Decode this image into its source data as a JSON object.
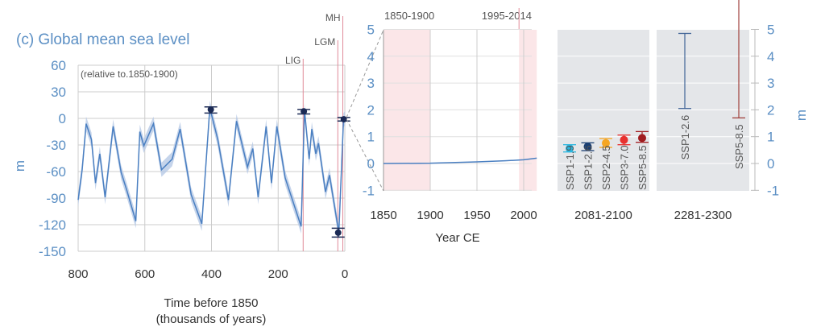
{
  "chart_data": [
    {
      "type": "line",
      "title": "(c) Global mean sea level",
      "annotation": "(relative to.1850-1900)",
      "xlabel": "Time before 1850",
      "xlabel2": "(thousands of years)",
      "ylabel": "m",
      "xlim": [
        800,
        0
      ],
      "ylim": [
        -150,
        60
      ],
      "xticks": [
        800,
        600,
        400,
        200,
        0
      ],
      "yticks": [
        60,
        30,
        0,
        -30,
        -60,
        -90,
        -120,
        -150
      ],
      "periods": [
        {
          "label": "LIG",
          "x": 125
        },
        {
          "label": "LGM",
          "x": 21
        },
        {
          "label": "MH",
          "x": 6
        }
      ],
      "series": {
        "x": [
          800,
          788,
          776,
          760,
          748,
          735,
          719,
          695,
          671,
          655,
          627,
          615,
          603,
          574,
          550,
          518,
          494,
          461,
          429,
          405,
          381,
          349,
          325,
          292,
          276,
          260,
          236,
          220,
          204,
          179,
          131,
          121,
          107,
          99,
          87,
          79,
          58,
          46,
          18,
          4,
          0
        ],
        "y": [
          -92,
          -58,
          -6,
          -24,
          -73,
          -40,
          -89,
          -9,
          -61,
          -80,
          -116,
          -15,
          -31,
          -6,
          -58,
          -46,
          -12,
          -86,
          -119,
          12,
          -24,
          -92,
          -3,
          -55,
          -34,
          -89,
          -9,
          -73,
          -9,
          -67,
          -122,
          9,
          -46,
          -12,
          -40,
          -28,
          -83,
          -64,
          -129,
          -2,
          0
        ],
        "band": 8
      },
      "points": [
        {
          "x": 402,
          "y": 10,
          "lo": 6,
          "hi": 13
        },
        {
          "x": 123,
          "y": 8,
          "lo": 5,
          "hi": 10
        },
        {
          "x": 20,
          "y": -129,
          "lo": -134,
          "hi": -124
        },
        {
          "x": 3,
          "y": -1,
          "lo": -3,
          "hi": 1
        }
      ]
    },
    {
      "type": "line",
      "xlabel": "Year CE",
      "xlim": [
        1850,
        2020
      ],
      "ylim": [
        -1,
        5
      ],
      "xticks": [
        1850,
        1900,
        1950,
        2000
      ],
      "yticks": [
        5,
        4,
        3,
        2,
        1,
        0,
        -1
      ],
      "shaded": [
        {
          "label": "1850-1900",
          "from": 1850,
          "to": 1900
        },
        {
          "label": "1995-2014",
          "from": 1995,
          "to": 2014
        }
      ],
      "series": {
        "x": [
          1850,
          1900,
          1950,
          1980,
          2000,
          2014
        ],
        "y": [
          0,
          0.01,
          0.06,
          0.1,
          0.14,
          0.2
        ]
      }
    },
    {
      "type": "errorbar",
      "xlabel": "2081-2100",
      "ylim": [
        -1,
        5
      ],
      "items": [
        {
          "name": "SSP1-1.9",
          "median": 0.56,
          "lo": 0.43,
          "hi": 0.7,
          "color": "#29b6e0"
        },
        {
          "name": "SSP1-2.6",
          "median": 0.63,
          "lo": 0.48,
          "hi": 0.77,
          "color": "#1a3f73"
        },
        {
          "name": "SSP2-4.5",
          "median": 0.76,
          "lo": 0.6,
          "hi": 0.93,
          "color": "#f5a623"
        },
        {
          "name": "SSP3-7.0",
          "median": 0.88,
          "lo": 0.7,
          "hi": 1.06,
          "color": "#e8312f"
        },
        {
          "name": "SSP5-8.5",
          "median": 0.95,
          "lo": 0.79,
          "hi": 1.19,
          "color": "#a01c20"
        }
      ]
    },
    {
      "type": "errorbar",
      "xlabel": "2281-2300",
      "ylim": [
        -1,
        5
      ],
      "ylabel": "m",
      "yticks": [
        5,
        4,
        3,
        2,
        1,
        0,
        -1
      ],
      "items": [
        {
          "name": "SSP1-2.6",
          "lo": 2.05,
          "hi": 4.85,
          "color": "#3f6396"
        },
        {
          "name": "SSP5-8.5",
          "lo": 1.7,
          "hi": 6.1,
          "color": "#a0403c"
        }
      ]
    }
  ]
}
